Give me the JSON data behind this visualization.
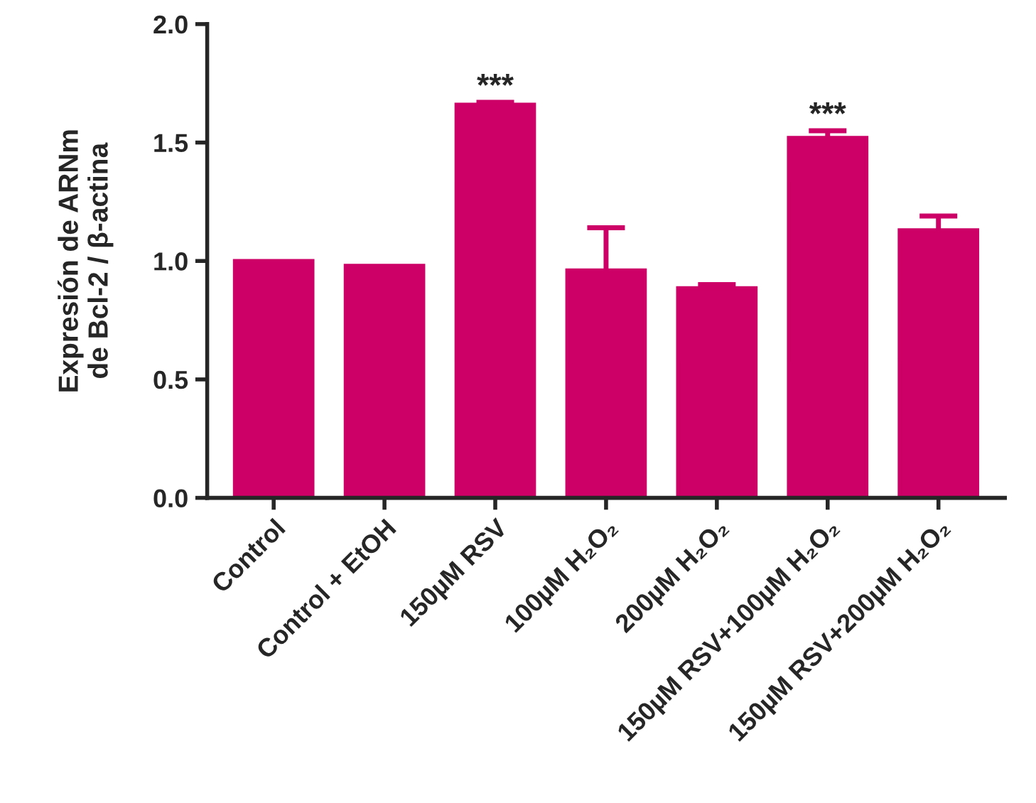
{
  "chart_data": {
    "type": "bar",
    "ylabel": "Expresión de ARNm\nde Bcl-2 / β-actina",
    "categories": [
      "Control",
      "Control + EtOH",
      "150µM RSV",
      "100µM H₂O₂",
      "200µM H₂O₂",
      "150µM RSV+100µM H₂O₂",
      "150µM RSV+200µM H₂O₂"
    ],
    "values": [
      1.0,
      0.98,
      1.66,
      0.96,
      0.885,
      1.52,
      1.13
    ],
    "errors": [
      null,
      null,
      [
        1.66,
        1.67
      ],
      [
        0.96,
        1.14
      ],
      [
        0.885,
        0.9
      ],
      [
        1.52,
        1.55
      ],
      [
        1.13,
        1.19
      ]
    ],
    "color": "#cc0066",
    "ylim": [
      0,
      2.0
    ],
    "yticks": [
      {
        "value": 0,
        "label": "0.0"
      },
      {
        "value": 0.5,
        "label": "0.5"
      },
      {
        "value": 1.0,
        "label": "1.0"
      },
      {
        "value": 1.5,
        "label": "1.5"
      },
      {
        "value": 2.0,
        "label": "2.0"
      }
    ],
    "annotations": [
      {
        "text": "***",
        "x": "150µM RSV",
        "y": 1.67
      },
      {
        "text": "***",
        "x": "150µM RSV+100µM H₂O₂",
        "y": 1.55
      }
    ],
    "grid": false,
    "legend": false
  }
}
